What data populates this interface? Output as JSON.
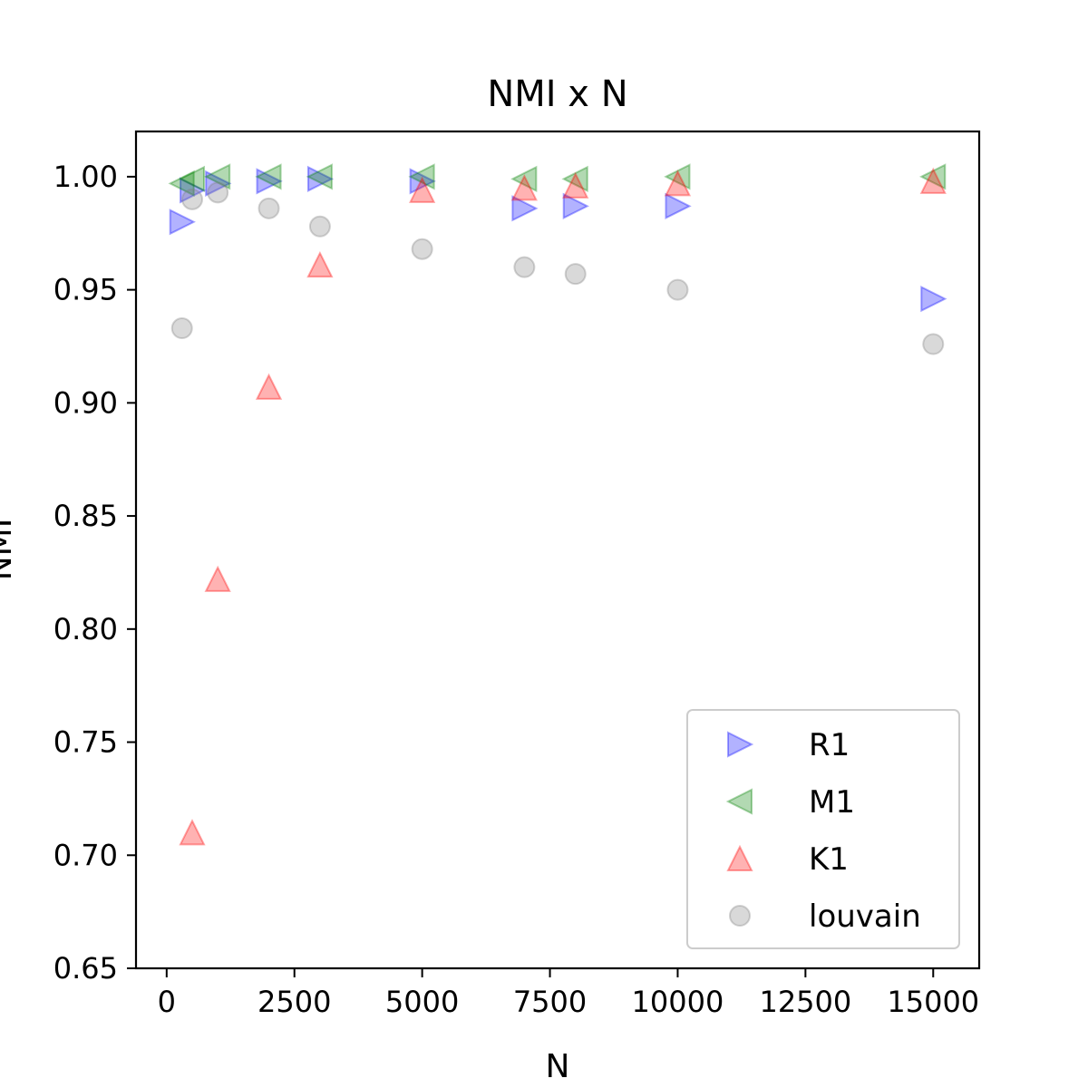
{
  "chart_data": {
    "type": "scatter",
    "title": "NMI x N",
    "xlabel": "N",
    "ylabel": "NMI",
    "xlim": [
      -600,
      15900
    ],
    "ylim": [
      0.65,
      1.02
    ],
    "xticks": [
      0,
      2500,
      5000,
      7500,
      10000,
      12500,
      15000
    ],
    "xtick_labels": [
      "0",
      "2500",
      "5000",
      "7500",
      "10000",
      "12500",
      "15000"
    ],
    "yticks": [
      0.65,
      0.7,
      0.75,
      0.8,
      0.85,
      0.9,
      0.95,
      1.0
    ],
    "ytick_labels": [
      "0.65",
      "0.70",
      "0.75",
      "0.80",
      "0.85",
      "0.90",
      "0.95",
      "1.00"
    ],
    "grid": false,
    "legend": "lower-right",
    "series": [
      {
        "name": "R1",
        "marker": "triangle-right",
        "color": "#0000ff",
        "points": [
          [
            300,
            0.98
          ],
          [
            500,
            0.994
          ],
          [
            1000,
            0.997
          ],
          [
            2000,
            0.998
          ],
          [
            3000,
            0.999
          ],
          [
            5000,
            0.998
          ],
          [
            7000,
            0.986
          ],
          [
            8000,
            0.987
          ],
          [
            10000,
            0.987
          ],
          [
            15000,
            0.946
          ]
        ]
      },
      {
        "name": "M1",
        "marker": "triangle-left",
        "color": "#008000",
        "points": [
          [
            300,
            0.997
          ],
          [
            500,
            0.999
          ],
          [
            1000,
            1.0
          ],
          [
            2000,
            1.0
          ],
          [
            3000,
            1.0
          ],
          [
            5000,
            1.0
          ],
          [
            7000,
            0.999
          ],
          [
            8000,
            0.999
          ],
          [
            10000,
            1.0
          ],
          [
            15000,
            1.0
          ]
        ]
      },
      {
        "name": "K1",
        "marker": "triangle-up",
        "color": "#ff0000",
        "points": [
          [
            500,
            0.71
          ],
          [
            1000,
            0.822
          ],
          [
            2000,
            0.907
          ],
          [
            3000,
            0.961
          ],
          [
            5000,
            0.994
          ],
          [
            7000,
            0.995
          ],
          [
            8000,
            0.996
          ],
          [
            10000,
            0.997
          ],
          [
            15000,
            0.998
          ]
        ]
      },
      {
        "name": "louvain",
        "marker": "circle",
        "color": "#808080",
        "points": [
          [
            300,
            0.933
          ],
          [
            500,
            0.99
          ],
          [
            1000,
            0.993
          ],
          [
            2000,
            0.986
          ],
          [
            3000,
            0.978
          ],
          [
            5000,
            0.968
          ],
          [
            7000,
            0.96
          ],
          [
            8000,
            0.957
          ],
          [
            10000,
            0.95
          ],
          [
            15000,
            0.926
          ]
        ]
      }
    ]
  }
}
